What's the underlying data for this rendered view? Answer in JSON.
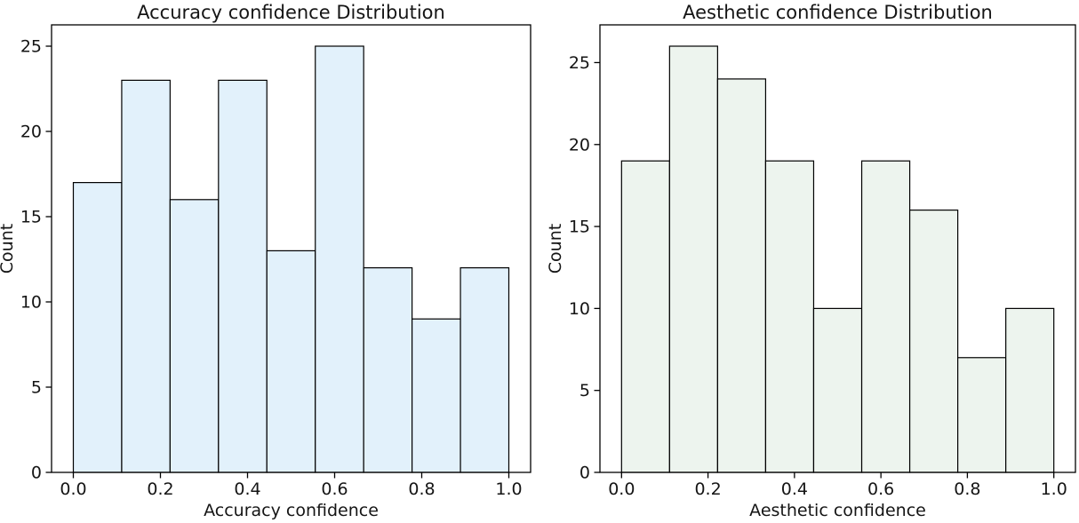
{
  "figure": {
    "background": "#ffffff",
    "text_color": "#151515",
    "spine_color": "#000000"
  },
  "chart_data": [
    {
      "type": "bar",
      "subtype": "histogram",
      "title": "Accuracy confidence Distribution",
      "xlabel": "Accuracy confidence",
      "ylabel": "Count",
      "bin_edges": [
        0.0,
        0.1111,
        0.2222,
        0.3333,
        0.4444,
        0.5556,
        0.6667,
        0.7778,
        0.8889,
        1.0
      ],
      "counts": [
        17,
        23,
        16,
        23,
        13,
        25,
        12,
        9,
        12
      ],
      "xtick_labels": [
        "0.0",
        "0.2",
        "0.4",
        "0.6",
        "0.8",
        "1.0"
      ],
      "xtick_values": [
        0.0,
        0.2,
        0.4,
        0.6,
        0.8,
        1.0
      ],
      "ytick_values": [
        0,
        5,
        10,
        15,
        20,
        25
      ],
      "xlim": [
        -0.05,
        1.05
      ],
      "ylim": [
        0,
        26.25
      ],
      "grid": false,
      "legend": null,
      "bar_fill": "#E2F1FB",
      "bar_edge": "#000000"
    },
    {
      "type": "bar",
      "subtype": "histogram",
      "title": "Aesthetic confidence Distribution",
      "xlabel": "Aesthetic confidence",
      "ylabel": "Count",
      "bin_edges": [
        0.0,
        0.1111,
        0.2222,
        0.3333,
        0.4444,
        0.5556,
        0.6667,
        0.7778,
        0.8889,
        1.0
      ],
      "counts": [
        19,
        26,
        24,
        19,
        10,
        19,
        16,
        7,
        10
      ],
      "xtick_labels": [
        "0.0",
        "0.2",
        "0.4",
        "0.6",
        "0.8",
        "1.0"
      ],
      "xtick_values": [
        0.0,
        0.2,
        0.4,
        0.6,
        0.8,
        1.0
      ],
      "ytick_values": [
        0,
        5,
        10,
        15,
        20,
        25
      ],
      "xlim": [
        -0.05,
        1.05
      ],
      "ylim": [
        0,
        27.3
      ],
      "grid": false,
      "legend": null,
      "bar_fill": "#EDF4EE",
      "bar_edge": "#000000"
    }
  ]
}
